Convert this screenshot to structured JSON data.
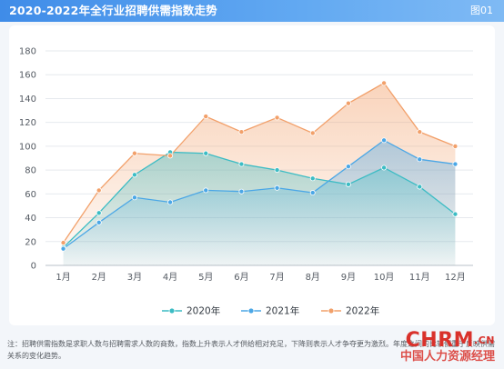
{
  "header": {
    "title": "2020-2022年全行业招聘供需指数走势",
    "figure_label": "图01"
  },
  "chart_data": {
    "type": "area",
    "categories": [
      "1月",
      "2月",
      "3月",
      "4月",
      "5月",
      "6月",
      "7月",
      "8月",
      "9月",
      "10月",
      "11月",
      "12月"
    ],
    "ylim": [
      0,
      180
    ],
    "yticks": [
      0,
      20,
      40,
      60,
      80,
      100,
      120,
      140,
      160,
      180
    ],
    "grid": true,
    "legend_position": "bottom-center",
    "series": [
      {
        "name": "2020年",
        "color": "#3cbcc4",
        "values": [
          15,
          44,
          76,
          95,
          94,
          85,
          80,
          73,
          68,
          82,
          66,
          43
        ]
      },
      {
        "name": "2021年",
        "color": "#4ba7e6",
        "values": [
          14,
          36,
          57,
          53,
          63,
          62,
          65,
          61,
          83,
          105,
          89,
          85
        ]
      },
      {
        "name": "2022年",
        "color": "#f2a06a",
        "values": [
          19,
          63,
          94,
          92,
          125,
          112,
          124,
          111,
          136,
          153,
          112,
          100
        ]
      }
    ]
  },
  "note": "注：招聘供需指数是求职人数与招聘需求人数的商数，指数上升表示人才供给相对充足，下降则表示人才争夺更为激烈。年度之间的比较侧重于反映供需关系的变化趋势。",
  "watermark": {
    "brand": "CHRM",
    "domain": ".CN",
    "subtitle": "中国人力资源经理"
  }
}
